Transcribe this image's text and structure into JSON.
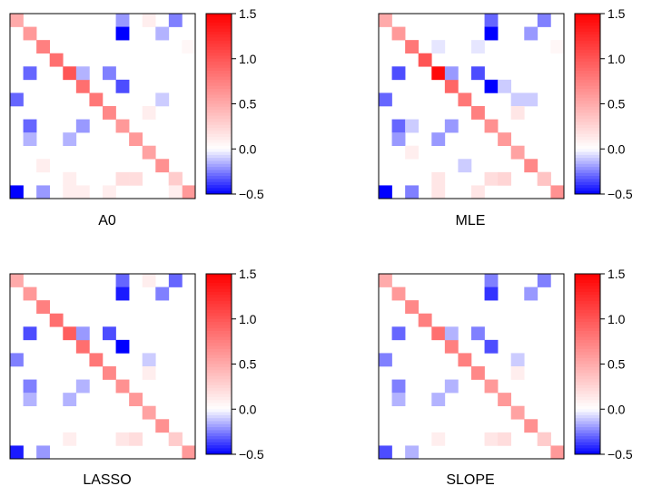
{
  "colors": {
    "negative": "#0000ff",
    "zero": "#ffffff",
    "positive": "#ff0000",
    "frame": "#000000"
  },
  "chart_data": [
    {
      "type": "heatmap",
      "title": "A0",
      "size": 14,
      "colorbar": {
        "min": -0.5,
        "max": 1.5,
        "ticks": [
          "1.5",
          "1.0",
          "0.5",
          "0.0",
          "−0.5"
        ],
        "tick_values": [
          1.5,
          1.0,
          0.5,
          0.0,
          -0.5
        ]
      },
      "cells": [
        [
          0,
          0,
          0.5
        ],
        [
          1,
          1,
          0.6
        ],
        [
          2,
          2,
          0.75
        ],
        [
          3,
          3,
          0.85
        ],
        [
          4,
          4,
          1.0
        ],
        [
          5,
          5,
          0.85
        ],
        [
          6,
          6,
          0.8
        ],
        [
          7,
          7,
          0.7
        ],
        [
          8,
          8,
          0.6
        ],
        [
          9,
          9,
          0.6
        ],
        [
          10,
          10,
          0.55
        ],
        [
          11,
          11,
          0.65
        ],
        [
          12,
          12,
          0.5
        ],
        [
          13,
          13,
          0.6
        ],
        [
          0,
          8,
          -0.2
        ],
        [
          1,
          8,
          -0.5
        ],
        [
          0,
          10,
          0.1
        ],
        [
          0,
          12,
          -0.25
        ],
        [
          1,
          11,
          -0.15
        ],
        [
          2,
          13,
          0.05
        ],
        [
          4,
          1,
          -0.3
        ],
        [
          4,
          5,
          -0.15
        ],
        [
          4,
          7,
          -0.25
        ],
        [
          5,
          8,
          -0.35
        ],
        [
          6,
          0,
          -0.3
        ],
        [
          6,
          11,
          -0.1
        ],
        [
          7,
          10,
          0.1
        ],
        [
          8,
          1,
          -0.3
        ],
        [
          8,
          5,
          -0.2
        ],
        [
          9,
          1,
          -0.15
        ],
        [
          9,
          4,
          -0.15
        ],
        [
          11,
          2,
          0.1
        ],
        [
          12,
          4,
          0.1
        ],
        [
          12,
          8,
          0.2
        ],
        [
          12,
          9,
          0.2
        ],
        [
          12,
          12,
          0.3
        ],
        [
          13,
          0,
          -0.55
        ],
        [
          13,
          2,
          -0.2
        ],
        [
          13,
          4,
          0.1
        ],
        [
          13,
          5,
          0.1
        ],
        [
          13,
          7,
          0.1
        ],
        [
          13,
          12,
          0.1
        ],
        [
          14,
          9,
          -0.35
        ],
        [
          14,
          12,
          -0.15
        ]
      ]
    },
    {
      "type": "heatmap",
      "title": "MLE",
      "size": 14,
      "colorbar": {
        "min": -0.5,
        "max": 1.5,
        "ticks": [
          "1.5",
          "1.0",
          "0.5",
          "0.0",
          "−0.5"
        ],
        "tick_values": [
          1.5,
          1.0,
          0.5,
          0.0,
          -0.5
        ]
      },
      "cells": [
        [
          0,
          0,
          0.5
        ],
        [
          1,
          1,
          0.6
        ],
        [
          2,
          2,
          0.8
        ],
        [
          3,
          3,
          1.0
        ],
        [
          4,
          4,
          1.45
        ],
        [
          5,
          5,
          0.9
        ],
        [
          6,
          6,
          0.8
        ],
        [
          7,
          7,
          0.75
        ],
        [
          8,
          8,
          0.65
        ],
        [
          9,
          9,
          0.6
        ],
        [
          10,
          10,
          0.55
        ],
        [
          11,
          11,
          0.7
        ],
        [
          12,
          12,
          0.6
        ],
        [
          13,
          13,
          0.65
        ],
        [
          0,
          8,
          -0.3
        ],
        [
          1,
          8,
          -0.5
        ],
        [
          0,
          12,
          -0.25
        ],
        [
          1,
          11,
          -0.2
        ],
        [
          2,
          13,
          0.05
        ],
        [
          2,
          4,
          -0.05
        ],
        [
          2,
          7,
          -0.05
        ],
        [
          4,
          1,
          -0.35
        ],
        [
          4,
          5,
          -0.2
        ],
        [
          4,
          7,
          -0.35
        ],
        [
          5,
          8,
          -0.55
        ],
        [
          5,
          9,
          -0.1
        ],
        [
          6,
          0,
          -0.3
        ],
        [
          6,
          10,
          -0.1
        ],
        [
          6,
          11,
          -0.1
        ],
        [
          7,
          10,
          0.15
        ],
        [
          8,
          1,
          -0.3
        ],
        [
          8,
          5,
          -0.2
        ],
        [
          8,
          2,
          -0.1
        ],
        [
          9,
          1,
          -0.2
        ],
        [
          9,
          4,
          -0.2
        ],
        [
          10,
          2,
          0.1
        ],
        [
          12,
          4,
          0.15
        ],
        [
          12,
          8,
          0.2
        ],
        [
          12,
          9,
          0.25
        ],
        [
          12,
          12,
          0.35
        ],
        [
          11,
          6,
          -0.1
        ],
        [
          13,
          0,
          -0.55
        ],
        [
          13,
          2,
          -0.25
        ],
        [
          13,
          4,
          0.15
        ],
        [
          13,
          7,
          0.15
        ],
        [
          14,
          9,
          -0.45
        ],
        [
          14,
          12,
          -0.2
        ],
        [
          14,
          1,
          -0.1
        ],
        [
          14,
          2,
          -0.05
        ]
      ]
    },
    {
      "type": "heatmap",
      "title": "LASSO",
      "size": 14,
      "colorbar": {
        "min": -0.5,
        "max": 1.5,
        "ticks": [
          "1.5",
          "1.0",
          "0.5",
          "0.0",
          "−0.5"
        ],
        "tick_values": [
          1.5,
          1.0,
          0.5,
          0.0,
          -0.5
        ]
      },
      "cells": [
        [
          0,
          0,
          0.5
        ],
        [
          1,
          1,
          0.6
        ],
        [
          2,
          2,
          0.75
        ],
        [
          3,
          3,
          0.85
        ],
        [
          4,
          4,
          0.95
        ],
        [
          5,
          5,
          0.85
        ],
        [
          6,
          6,
          0.8
        ],
        [
          7,
          7,
          0.7
        ],
        [
          8,
          8,
          0.65
        ],
        [
          9,
          9,
          0.6
        ],
        [
          10,
          10,
          0.55
        ],
        [
          11,
          11,
          0.65
        ],
        [
          12,
          12,
          0.5
        ],
        [
          13,
          13,
          0.6
        ],
        [
          0,
          8,
          -0.3
        ],
        [
          1,
          8,
          -0.45
        ],
        [
          0,
          10,
          0.1
        ],
        [
          0,
          12,
          -0.3
        ],
        [
          1,
          11,
          -0.25
        ],
        [
          4,
          1,
          -0.35
        ],
        [
          4,
          5,
          -0.2
        ],
        [
          4,
          7,
          -0.35
        ],
        [
          5,
          8,
          -0.5
        ],
        [
          6,
          0,
          -0.25
        ],
        [
          6,
          10,
          -0.1
        ],
        [
          7,
          10,
          0.1
        ],
        [
          8,
          1,
          -0.25
        ],
        [
          8,
          5,
          -0.15
        ],
        [
          9,
          1,
          -0.15
        ],
        [
          9,
          4,
          -0.15
        ],
        [
          12,
          4,
          0.1
        ],
        [
          12,
          8,
          0.15
        ],
        [
          12,
          9,
          0.2
        ],
        [
          12,
          12,
          0.3
        ],
        [
          13,
          0,
          -0.45
        ],
        [
          13,
          2,
          -0.2
        ],
        [
          14,
          2,
          -0.1
        ],
        [
          14,
          9,
          -0.3
        ],
        [
          14,
          12,
          -0.2
        ]
      ]
    },
    {
      "type": "heatmap",
      "title": "SLOPE",
      "size": 14,
      "colorbar": {
        "min": -0.5,
        "max": 1.5,
        "ticks": [
          "1.5",
          "1.0",
          "0.5",
          "0.0",
          "−0.5"
        ],
        "tick_values": [
          1.5,
          1.0,
          0.5,
          0.0,
          -0.5
        ]
      },
      "cells": [
        [
          0,
          0,
          0.5
        ],
        [
          1,
          1,
          0.6
        ],
        [
          2,
          2,
          0.7
        ],
        [
          3,
          3,
          0.75
        ],
        [
          4,
          4,
          0.85
        ],
        [
          5,
          5,
          0.75
        ],
        [
          6,
          6,
          0.75
        ],
        [
          7,
          7,
          0.7
        ],
        [
          8,
          8,
          0.6
        ],
        [
          9,
          9,
          0.6
        ],
        [
          10,
          10,
          0.55
        ],
        [
          11,
          11,
          0.65
        ],
        [
          12,
          12,
          0.5
        ],
        [
          13,
          13,
          0.6
        ],
        [
          0,
          8,
          -0.25
        ],
        [
          1,
          8,
          -0.4
        ],
        [
          0,
          12,
          -0.25
        ],
        [
          1,
          11,
          -0.2
        ],
        [
          4,
          1,
          -0.3
        ],
        [
          4,
          5,
          -0.15
        ],
        [
          4,
          7,
          -0.25
        ],
        [
          5,
          8,
          -0.35
        ],
        [
          6,
          0,
          -0.25
        ],
        [
          6,
          10,
          -0.1
        ],
        [
          7,
          10,
          0.1
        ],
        [
          8,
          1,
          -0.25
        ],
        [
          8,
          5,
          -0.15
        ],
        [
          9,
          1,
          -0.15
        ],
        [
          9,
          4,
          -0.15
        ],
        [
          12,
          4,
          0.1
        ],
        [
          12,
          8,
          0.15
        ],
        [
          12,
          9,
          0.2
        ],
        [
          12,
          12,
          0.3
        ],
        [
          13,
          0,
          -0.35
        ],
        [
          13,
          2,
          -0.15
        ],
        [
          14,
          9,
          -0.3
        ],
        [
          14,
          12,
          -0.15
        ]
      ]
    }
  ]
}
